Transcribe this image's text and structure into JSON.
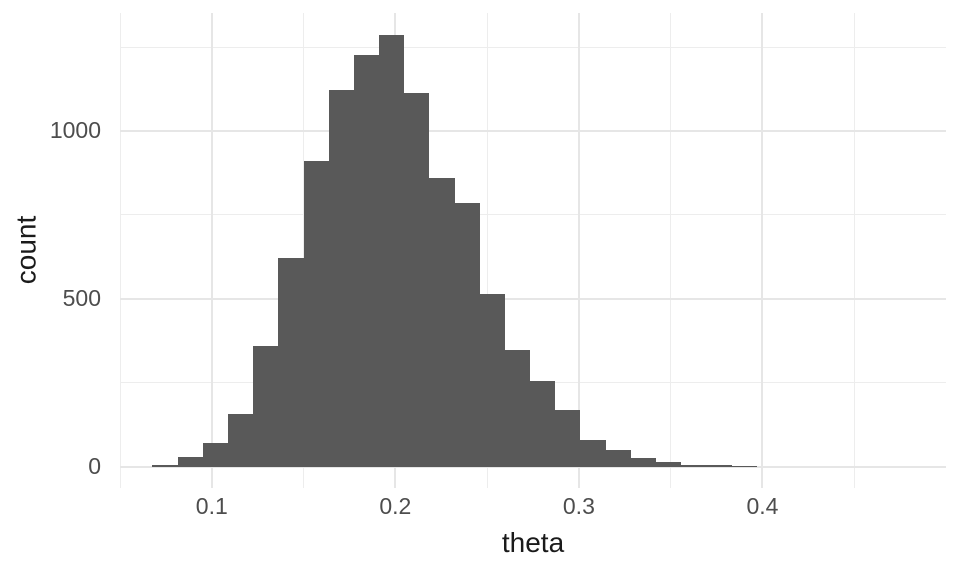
{
  "chart_data": {
    "type": "bar",
    "subtype": "histogram",
    "title": "",
    "xlabel": "theta",
    "ylabel": "count",
    "x_ticks": [
      0.1,
      0.2,
      0.3,
      0.4
    ],
    "x_tick_labels": [
      "0.1",
      "0.2",
      "0.3",
      "0.4"
    ],
    "y_ticks": [
      0,
      500,
      1000
    ],
    "y_tick_labels": [
      "0",
      "500",
      "1000"
    ],
    "x_minor_gridlines": [
      0.05,
      0.15,
      0.25,
      0.35,
      0.45
    ],
    "y_minor_gridlines": [
      250,
      750,
      1250
    ],
    "xlim": [
      0.05,
      0.5
    ],
    "ylim": [
      -64,
      1352
    ],
    "bin_start": 0.0677,
    "bin_width": 0.013715,
    "counts": [
      5,
      27,
      71,
      158,
      360,
      622,
      911,
      1122,
      1226,
      1285,
      1113,
      860,
      786,
      515,
      348,
      256,
      170,
      80,
      48,
      26,
      13,
      6,
      6,
      3
    ],
    "grid_on": true,
    "legend": "none",
    "colors": {
      "bar_fill": "#595959",
      "grid_major": "#e6e6e6",
      "grid_minor": "#ededed",
      "axis_text": "#4d4d4d",
      "axis_title": "#1a1a1a",
      "background": "#ffffff"
    }
  }
}
